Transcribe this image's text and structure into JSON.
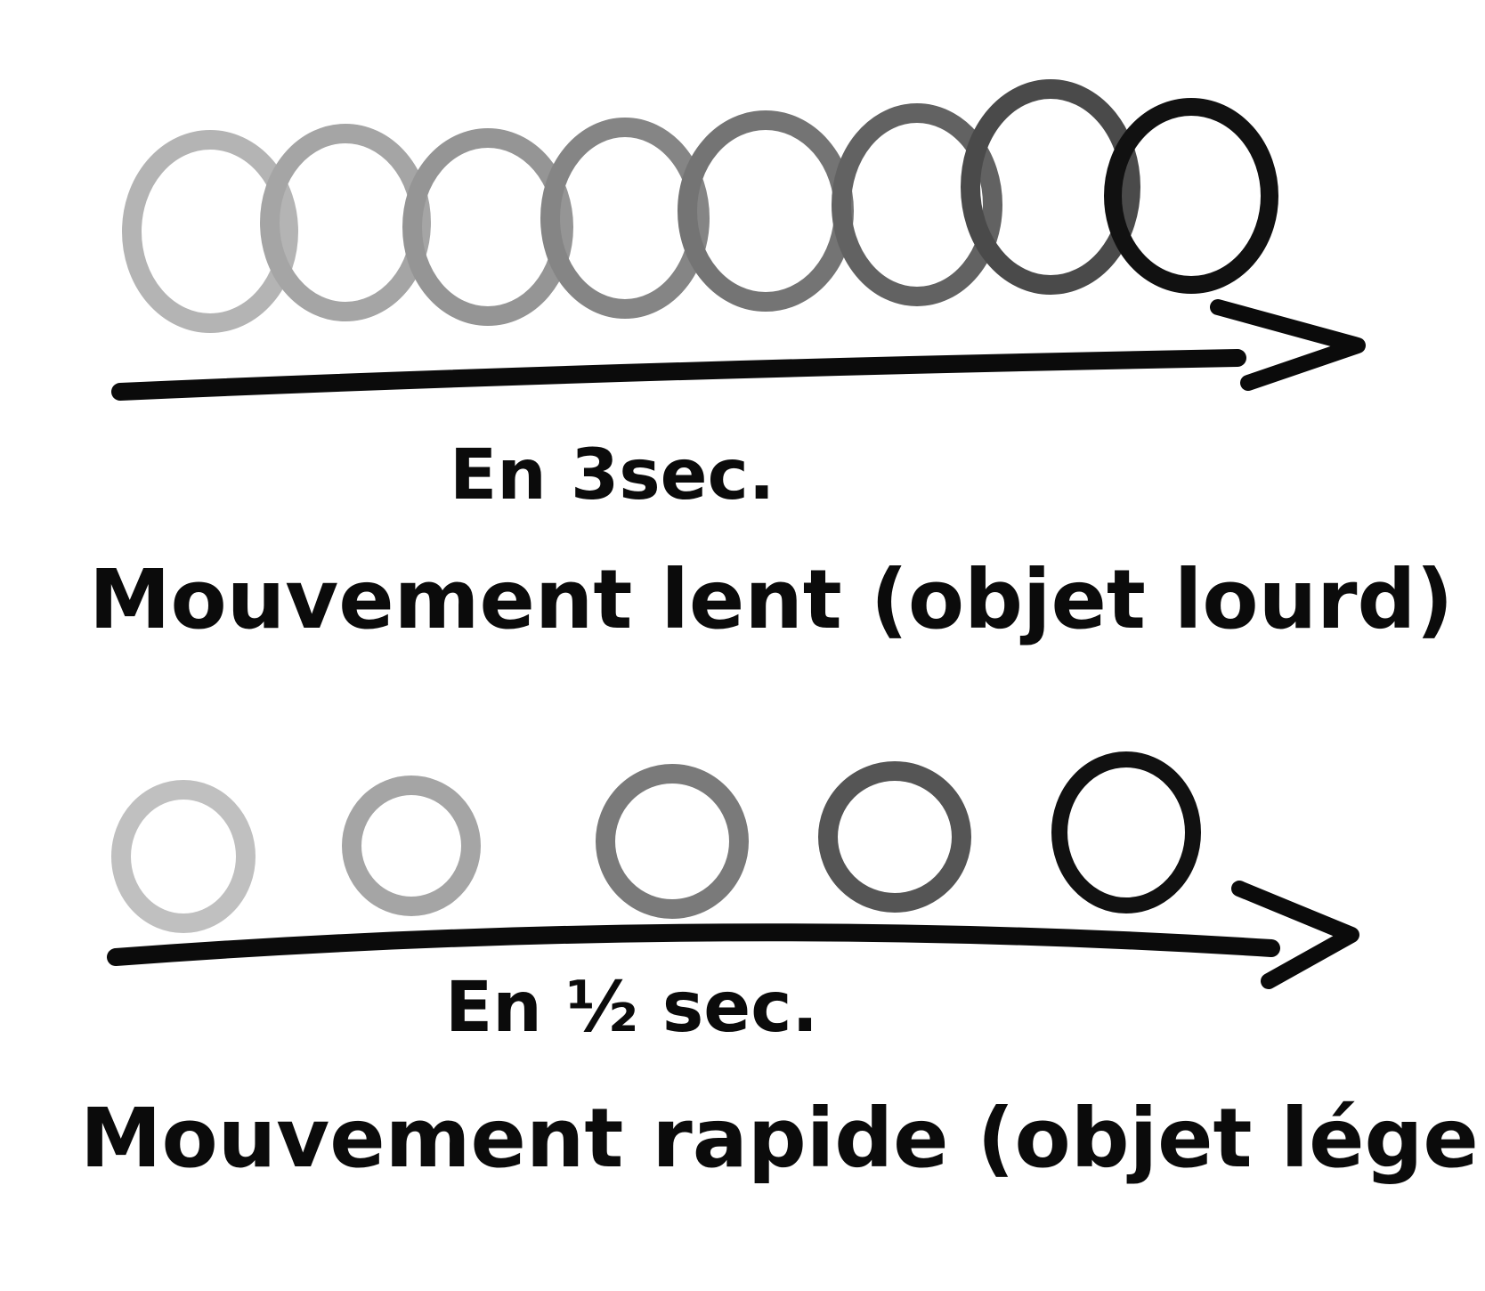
{
  "diagram": {
    "slow": {
      "duration_label": "En 3sec.",
      "description": "Mouvement lent (objet lourd)",
      "frame_count": 8,
      "frame_shades": [
        "#b4b4b4",
        "#a5a5a5",
        "#959595",
        "#858585",
        "#747474",
        "#626262",
        "#4a4a4a",
        "#111111"
      ]
    },
    "fast": {
      "duration_label": "En ½ sec.",
      "description": "Mouvement rapide (objet léger)",
      "frame_count": 5,
      "frame_shades": [
        "#c0c0c0",
        "#a5a5a5",
        "#7a7a7a",
        "#555555",
        "#111111"
      ]
    },
    "colors": {
      "ink": "#0b0b0b",
      "background": "#ffffff"
    }
  }
}
